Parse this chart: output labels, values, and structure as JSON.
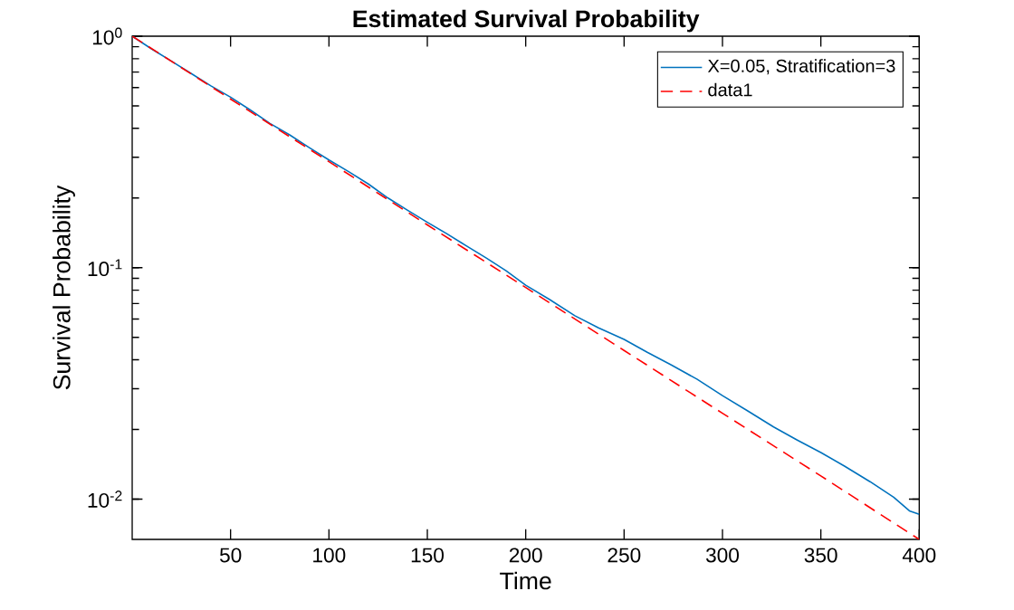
{
  "chart_data": {
    "type": "line",
    "title": "Estimated Survival Probability",
    "xlabel": "Time",
    "ylabel": "Survival Probability",
    "log": "y",
    "legend": "top right",
    "xlim": [
      0,
      400
    ],
    "ylim": [
      0.0067,
      1
    ],
    "xticks": [
      50,
      100,
      150,
      200,
      250,
      300,
      350,
      400
    ],
    "yticks": [
      {
        "value": 0.01,
        "label": "10$^{-2}$"
      },
      {
        "value": 0.1,
        "label": "10$^{-1}$"
      },
      {
        "value": 1,
        "label": "10$^{0}$"
      }
    ],
    "series": [
      {
        "name": "X=0.05, Stratification=3",
        "color": "#0072bd",
        "line_style": "solid",
        "x": [
          0,
          10,
          20,
          30,
          40,
          50,
          60,
          70,
          80,
          90,
          100,
          110,
          120,
          130,
          140,
          150,
          160,
          170,
          180,
          190,
          200,
          212,
          225,
          237,
          250,
          262,
          274,
          287,
          300,
          313,
          326,
          338,
          350,
          362,
          375,
          387,
          395,
          400
        ],
        "values": [
          1,
          0.88,
          0.78,
          0.69,
          0.61,
          0.545,
          0.48,
          0.42,
          0.375,
          0.33,
          0.292,
          0.26,
          0.23,
          0.2,
          0.177,
          0.157,
          0.14,
          0.124,
          0.11,
          0.097,
          0.084,
          0.073,
          0.062,
          0.055,
          0.049,
          0.043,
          0.038,
          0.033,
          0.028,
          0.024,
          0.0205,
          0.018,
          0.0159,
          0.0139,
          0.0119,
          0.0102,
          0.0089,
          0.0086
        ]
      },
      {
        "name": "data1",
        "color": "#ff0000",
        "line_style": "dashed",
        "x": [
          0,
          50,
          100,
          150,
          200,
          250,
          300,
          350,
          400
        ],
        "values": [
          1,
          0.535,
          0.287,
          0.153,
          0.0821,
          0.0439,
          0.0235,
          0.0126,
          0.0067
        ]
      }
    ]
  }
}
